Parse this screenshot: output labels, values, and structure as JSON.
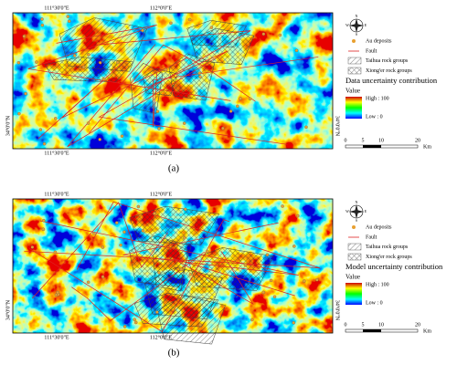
{
  "panels": [
    {
      "label": "(a)",
      "lon_top": [
        "111°30'0\"E",
        "112°0'0\"E"
      ],
      "lon_bottom": [
        "111°30'0\"E",
        "112°0'0\"E"
      ],
      "lat": [
        "34°0'0\"N",
        "34°0'0\"N"
      ],
      "compass": [
        "N",
        "E",
        "S",
        "W"
      ],
      "legend": {
        "items": [
          "Au deposits",
          "Fault",
          "Taihua rock groups",
          "Xiong'er rock groups"
        ],
        "title": "Data uncertainty contribution",
        "value_title": "Value",
        "high": "High : 100",
        "low": "Low : 0"
      },
      "scale": {
        "ticks": [
          "0",
          "5",
          "10",
          "20"
        ],
        "unit": "Km"
      }
    },
    {
      "label": "(b)",
      "lon_top": [
        "111°30'0\"E",
        "112°0'0\"E"
      ],
      "lon_bottom": [
        "111°30'0\"E",
        "112°0'0\"E"
      ],
      "lat": [
        "34°0'0\"N",
        "34°0'0\"N"
      ],
      "compass": [
        "N",
        "E",
        "S",
        "W"
      ],
      "legend": {
        "items": [
          "Au deposits",
          "Fault",
          "Taihua rock groups",
          "Xiong'er rock groups"
        ],
        "title": "Model uncertainty contribution",
        "value_title": "Value",
        "high": "High : 100",
        "low": "Low : 0"
      },
      "scale": {
        "ticks": [
          "0",
          "5",
          "10",
          "20"
        ],
        "unit": "Km"
      }
    }
  ]
}
